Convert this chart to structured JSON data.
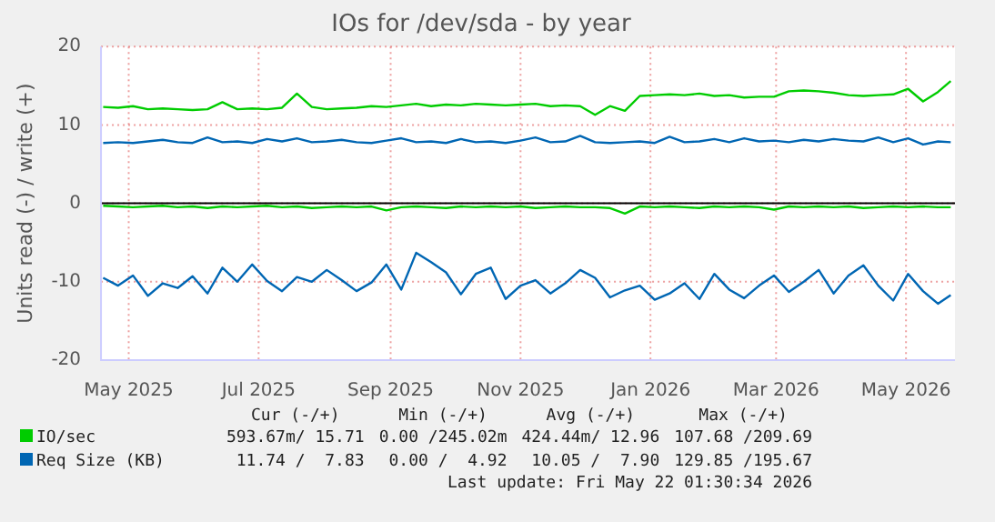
{
  "chart_data": {
    "type": "line",
    "title": "IOs for /dev/sda - by year",
    "ylabel": "Units read (-) / write (+)",
    "x": [
      "2025-04-19",
      "2025-04-26",
      "2025-05-03",
      "2025-05-10",
      "2025-05-17",
      "2025-05-24",
      "2025-05-31",
      "2025-06-07",
      "2025-06-14",
      "2025-06-21",
      "2025-06-28",
      "2025-07-05",
      "2025-07-12",
      "2025-07-19",
      "2025-07-26",
      "2025-08-02",
      "2025-08-09",
      "2025-08-16",
      "2025-08-23",
      "2025-08-30",
      "2025-09-06",
      "2025-09-13",
      "2025-09-20",
      "2025-09-27",
      "2025-10-04",
      "2025-10-11",
      "2025-10-18",
      "2025-10-25",
      "2025-11-01",
      "2025-11-08",
      "2025-11-15",
      "2025-11-22",
      "2025-11-29",
      "2025-12-06",
      "2025-12-13",
      "2025-12-20",
      "2025-12-27",
      "2026-01-03",
      "2026-01-10",
      "2026-01-17",
      "2026-01-24",
      "2026-01-31",
      "2026-02-07",
      "2026-02-14",
      "2026-02-21",
      "2026-02-28",
      "2026-03-07",
      "2026-03-14",
      "2026-03-21",
      "2026-03-28",
      "2026-04-04",
      "2026-04-11",
      "2026-04-18",
      "2026-04-25",
      "2026-05-02",
      "2026-05-09",
      "2026-05-16",
      "2026-05-22"
    ],
    "series": [
      {
        "name": "IO/sec",
        "color": "#00cc00",
        "values": [
          12.3,
          12.2,
          12.4,
          12.0,
          12.1,
          12.0,
          11.9,
          12.0,
          12.9,
          12.0,
          12.1,
          12.0,
          12.2,
          14.0,
          12.3,
          12.0,
          12.1,
          12.2,
          12.4,
          12.3,
          12.5,
          12.7,
          12.4,
          12.6,
          12.5,
          12.7,
          12.6,
          12.5,
          12.6,
          12.7,
          12.4,
          12.5,
          12.4,
          11.3,
          12.4,
          11.8,
          13.7,
          13.8,
          13.9,
          13.8,
          14.0,
          13.7,
          13.8,
          13.5,
          13.6,
          13.6,
          14.3,
          14.4,
          14.3,
          14.1,
          13.8,
          13.7,
          13.8,
          13.9,
          14.6,
          13.0,
          14.2,
          15.6
        ]
      },
      {
        "color": "#00cc00",
        "values": [
          -0.3,
          -0.4,
          -0.5,
          -0.4,
          -0.3,
          -0.5,
          -0.4,
          -0.6,
          -0.4,
          -0.5,
          -0.4,
          -0.3,
          -0.5,
          -0.4,
          -0.6,
          -0.5,
          -0.4,
          -0.5,
          -0.4,
          -0.9,
          -0.5,
          -0.4,
          -0.5,
          -0.6,
          -0.4,
          -0.5,
          -0.4,
          -0.5,
          -0.4,
          -0.6,
          -0.5,
          -0.4,
          -0.5,
          -0.5,
          -0.6,
          -1.3,
          -0.4,
          -0.5,
          -0.4,
          -0.5,
          -0.6,
          -0.4,
          -0.5,
          -0.4,
          -0.5,
          -0.8,
          -0.4,
          -0.5,
          -0.4,
          -0.5,
          -0.4,
          -0.6,
          -0.5,
          -0.4,
          -0.5,
          -0.4,
          -0.5,
          -0.5
        ]
      },
      {
        "name": "Req Size (KB)",
        "color": "#0066b3",
        "values": [
          7.7,
          7.8,
          7.7,
          7.9,
          8.1,
          7.8,
          7.7,
          8.4,
          7.8,
          7.9,
          7.7,
          8.2,
          7.9,
          8.3,
          7.8,
          7.9,
          8.1,
          7.8,
          7.7,
          8.0,
          8.3,
          7.8,
          7.9,
          7.7,
          8.2,
          7.8,
          7.9,
          7.7,
          8.0,
          8.4,
          7.8,
          7.9,
          8.6,
          7.8,
          7.7,
          7.8,
          7.9,
          7.7,
          8.5,
          7.8,
          7.9,
          8.2,
          7.8,
          8.3,
          7.9,
          8.0,
          7.8,
          8.1,
          7.9,
          8.2,
          8.0,
          7.9,
          8.4,
          7.8,
          8.3,
          7.5,
          7.9,
          7.8
        ]
      },
      {
        "color": "#0066b3",
        "values": [
          -9.5,
          -10.5,
          -9.2,
          -11.8,
          -10.2,
          -10.8,
          -9.3,
          -11.5,
          -8.2,
          -10.0,
          -7.8,
          -9.9,
          -11.2,
          -9.4,
          -10.0,
          -8.5,
          -9.8,
          -11.2,
          -10.1,
          -7.8,
          -11.0,
          -6.3,
          -7.5,
          -8.8,
          -11.6,
          -9.0,
          -8.2,
          -12.2,
          -10.5,
          -9.8,
          -11.5,
          -10.2,
          -8.5,
          -9.5,
          -12.0,
          -11.1,
          -10.5,
          -12.3,
          -11.5,
          -10.2,
          -12.2,
          -9.0,
          -11.0,
          -12.1,
          -10.5,
          -9.2,
          -11.3,
          -10.0,
          -8.5,
          -11.5,
          -9.2,
          -7.9,
          -10.5,
          -12.4,
          -9.0,
          -11.2,
          -12.8,
          -11.7
        ]
      }
    ],
    "xlim": [
      "2025-04-18",
      "2026-05-24"
    ],
    "xticks": [
      {
        "value": "2025-05-01",
        "label": "May 2025"
      },
      {
        "value": "2025-07-01",
        "label": "Jul 2025"
      },
      {
        "value": "2025-09-01",
        "label": "Sep 2025"
      },
      {
        "value": "2025-11-01",
        "label": "Nov 2025"
      },
      {
        "value": "2026-01-01",
        "label": "Jan 2026"
      },
      {
        "value": "2026-03-01",
        "label": "Mar 2026"
      },
      {
        "value": "2026-05-01",
        "label": "May 2026"
      }
    ],
    "ylim": [
      -20,
      20
    ],
    "yticks": [
      -20,
      -10,
      0,
      10,
      20
    ],
    "ref_lines": [
      {
        "axis": "y",
        "value": 0,
        "color": "#000000"
      }
    ],
    "grid": true,
    "legend": "bottom",
    "marker": "none",
    "line_style": "solid",
    "annotations": [
      "Cur (-/+)",
      "Min (-/+)",
      "Avg (-/+)",
      "Max (-/+)",
      "593.67m/ 15.71",
      "0.00 /245.02m",
      "424.44m/ 12.96",
      "107.68 /209.69",
      "11.74 /  7.83",
      "0.00 /  4.92",
      "10.05 /  7.90",
      "129.85 /195.67",
      "Last update: Fri May 22 01:30:34 2026"
    ]
  }
}
